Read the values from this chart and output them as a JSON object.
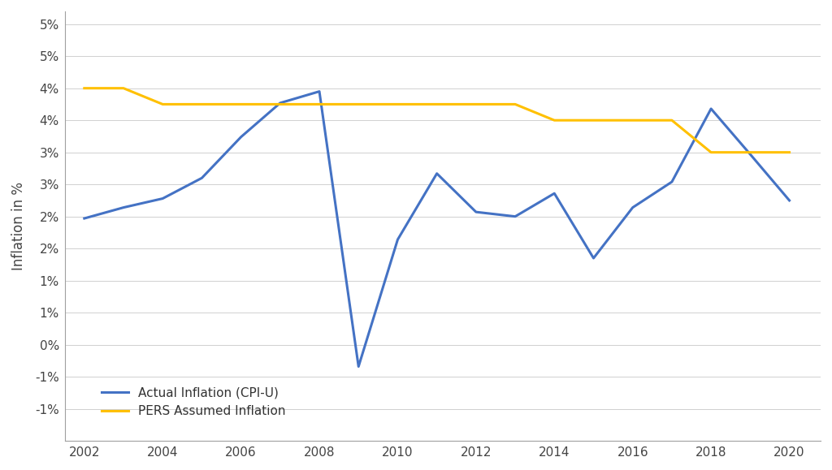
{
  "ylabel": "Inflation in %",
  "actual_inflation": {
    "years": [
      2002,
      2003,
      2004,
      2005,
      2006,
      2007,
      2008,
      2009,
      2010,
      2011,
      2012,
      2013,
      2014,
      2015,
      2016,
      2017,
      2018,
      2019,
      2020
    ],
    "values": [
      1.97,
      2.14,
      2.28,
      2.6,
      3.24,
      3.77,
      3.95,
      -0.34,
      1.64,
      2.67,
      2.07,
      2.0,
      2.36,
      1.35,
      2.14,
      2.54,
      3.68,
      2.97,
      2.25
    ]
  },
  "pers_assumed": {
    "years": [
      2002,
      2003,
      2004,
      2005,
      2006,
      2007,
      2008,
      2009,
      2010,
      2011,
      2012,
      2013,
      2014,
      2015,
      2016,
      2017,
      2018,
      2019,
      2020
    ],
    "values": [
      4.0,
      4.0,
      3.75,
      3.75,
      3.75,
      3.75,
      3.75,
      3.75,
      3.75,
      3.75,
      3.75,
      3.75,
      3.5,
      3.5,
      3.5,
      3.5,
      3.0,
      3.0,
      3.0
    ]
  },
  "actual_color": "#4472C4",
  "pers_color": "#FFC000",
  "line_width": 2.2,
  "xlim": [
    2001.5,
    2020.8
  ],
  "ylim": [
    -1.5,
    5.2
  ],
  "xticks": [
    2002,
    2004,
    2006,
    2008,
    2010,
    2012,
    2014,
    2016,
    2018,
    2020
  ],
  "ytick_positions": [
    -1.0,
    -0.5,
    0.0,
    0.5,
    1.0,
    1.5,
    2.0,
    2.5,
    3.0,
    3.5,
    4.0,
    4.5,
    5.0
  ],
  "ytick_labels": [
    "-1%",
    "-1%",
    "0%",
    "1%",
    "1%",
    "2%",
    "2%",
    "3%",
    "3%",
    "4%",
    "4%",
    "5%",
    "5%"
  ],
  "background_color": "#ffffff",
  "legend_actual": "Actual Inflation (CPI-U)",
  "legend_pers": "PERS Assumed Inflation",
  "grid_color": "#D0D0D0",
  "spine_color": "#A0A0A0"
}
